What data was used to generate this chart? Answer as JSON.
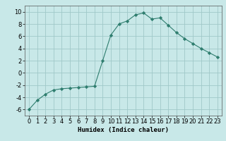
{
  "xlabel": "Humidex (Indice chaleur)",
  "ylabel": "",
  "x": [
    0,
    1,
    2,
    3,
    4,
    5,
    6,
    7,
    8,
    9,
    10,
    11,
    12,
    13,
    14,
    15,
    16,
    17,
    18,
    19,
    20,
    21,
    22,
    23
  ],
  "y": [
    -6,
    -4.5,
    -3.5,
    -2.8,
    -2.6,
    -2.5,
    -2.4,
    -2.3,
    -2.2,
    2.0,
    6.2,
    8.0,
    8.5,
    9.5,
    9.8,
    8.8,
    9.0,
    7.8,
    6.6,
    5.6,
    4.8,
    4.0,
    3.3,
    2.6
  ],
  "line_color": "#2e7d6e",
  "marker": "D",
  "marker_size": 2.2,
  "bg_color": "#c8e8e8",
  "grid_color": "#a0c8c8",
  "ylim": [
    -7,
    11
  ],
  "xlim": [
    -0.5,
    23.5
  ],
  "yticks": [
    -6,
    -4,
    -2,
    0,
    2,
    4,
    6,
    8,
    10
  ],
  "xticks": [
    0,
    1,
    2,
    3,
    4,
    5,
    6,
    7,
    8,
    9,
    10,
    11,
    12,
    13,
    14,
    15,
    16,
    17,
    18,
    19,
    20,
    21,
    22,
    23
  ],
  "label_fontsize": 6.5,
  "tick_fontsize": 6.0
}
